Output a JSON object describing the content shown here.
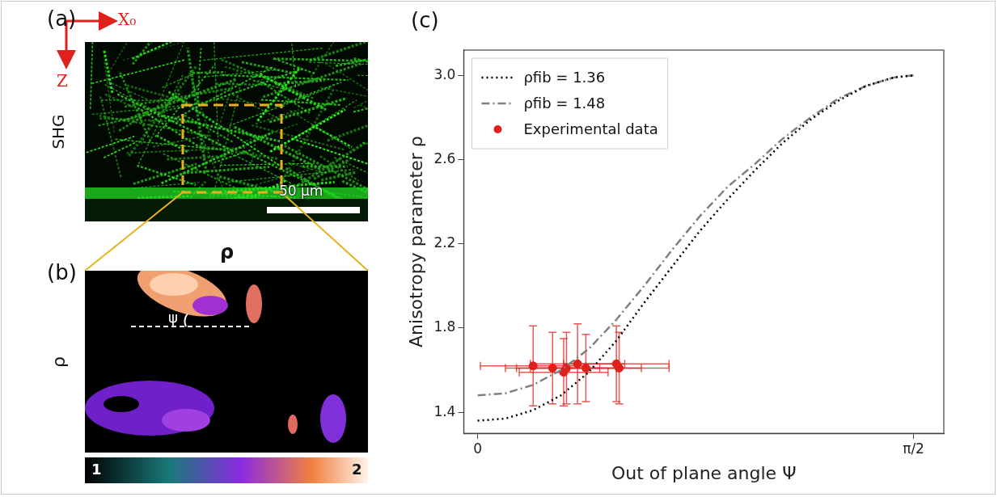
{
  "panels": [
    {
      "label": "(a)",
      "axis_labels": {
        "x": "X₀",
        "z": "Z"
      },
      "ylabel": "SHG",
      "scale_bar": "50 µm"
    },
    {
      "label": "(b)",
      "title": "ρ",
      "ylabel": "ρ",
      "angle_label": "ψ",
      "colorbar": {
        "range": [
          1,
          2
        ],
        "ticks": [
          1,
          2
        ]
      }
    }
  ],
  "chart_data": {
    "label": "(c)",
    "type": "scatter",
    "xlabel": "Out of plane angle Ψ",
    "ylabel": "Anisotropy parameter ρ",
    "xlim": [
      -0.05,
      1.68
    ],
    "ylim": [
      1.3,
      3.12
    ],
    "xticks": [
      0,
      {
        "value": 1.5708,
        "label": "π/2"
      }
    ],
    "yticks": [
      1.4,
      1.8,
      2.2,
      2.6,
      {
        "value": 3,
        "label": "3.0"
      }
    ],
    "grid": false,
    "legend": "upper left",
    "series": [
      {
        "name": "ρfib = 1.36",
        "type": "line",
        "color": "#000000",
        "line_style": "dotted",
        "x": [
          0,
          0.1,
          0.2,
          0.3,
          0.4,
          0.5,
          0.6,
          0.7,
          0.8,
          0.9,
          1.0,
          1.1,
          1.2,
          1.3,
          1.4,
          1.5,
          1.5708
        ],
        "values": [
          1.36,
          1.37,
          1.41,
          1.48,
          1.59,
          1.74,
          1.92,
          2.09,
          2.26,
          2.41,
          2.55,
          2.68,
          2.79,
          2.88,
          2.95,
          2.99,
          3.0
        ]
      },
      {
        "name": "ρfib = 1.48",
        "type": "line",
        "color": "#808080",
        "line_style": "dashdot",
        "x": [
          0,
          0.1,
          0.2,
          0.3,
          0.4,
          0.5,
          0.6,
          0.7,
          0.8,
          0.9,
          1.0,
          1.1,
          1.2,
          1.3,
          1.4,
          1.5,
          1.5708
        ],
        "values": [
          1.48,
          1.49,
          1.53,
          1.6,
          1.7,
          1.84,
          2.0,
          2.17,
          2.33,
          2.47,
          2.58,
          2.7,
          2.8,
          2.89,
          2.95,
          2.99,
          3.0
        ]
      },
      {
        "name": "Experimental data",
        "type": "scatter",
        "color": "#e0201b",
        "marker": "circle",
        "x": [
          0.2,
          0.27,
          0.31,
          0.32,
          0.36,
          0.39,
          0.5,
          0.51
        ],
        "values": [
          1.62,
          1.61,
          1.59,
          1.61,
          1.63,
          1.61,
          1.63,
          1.61
        ],
        "x_err": [
          0.19,
          0.17,
          0.16,
          0.18,
          0.17,
          0.2,
          0.19,
          0.18
        ],
        "y_err": [
          0.19,
          0.17,
          0.16,
          0.17,
          0.19,
          0.16,
          0.18,
          0.17
        ]
      }
    ]
  }
}
